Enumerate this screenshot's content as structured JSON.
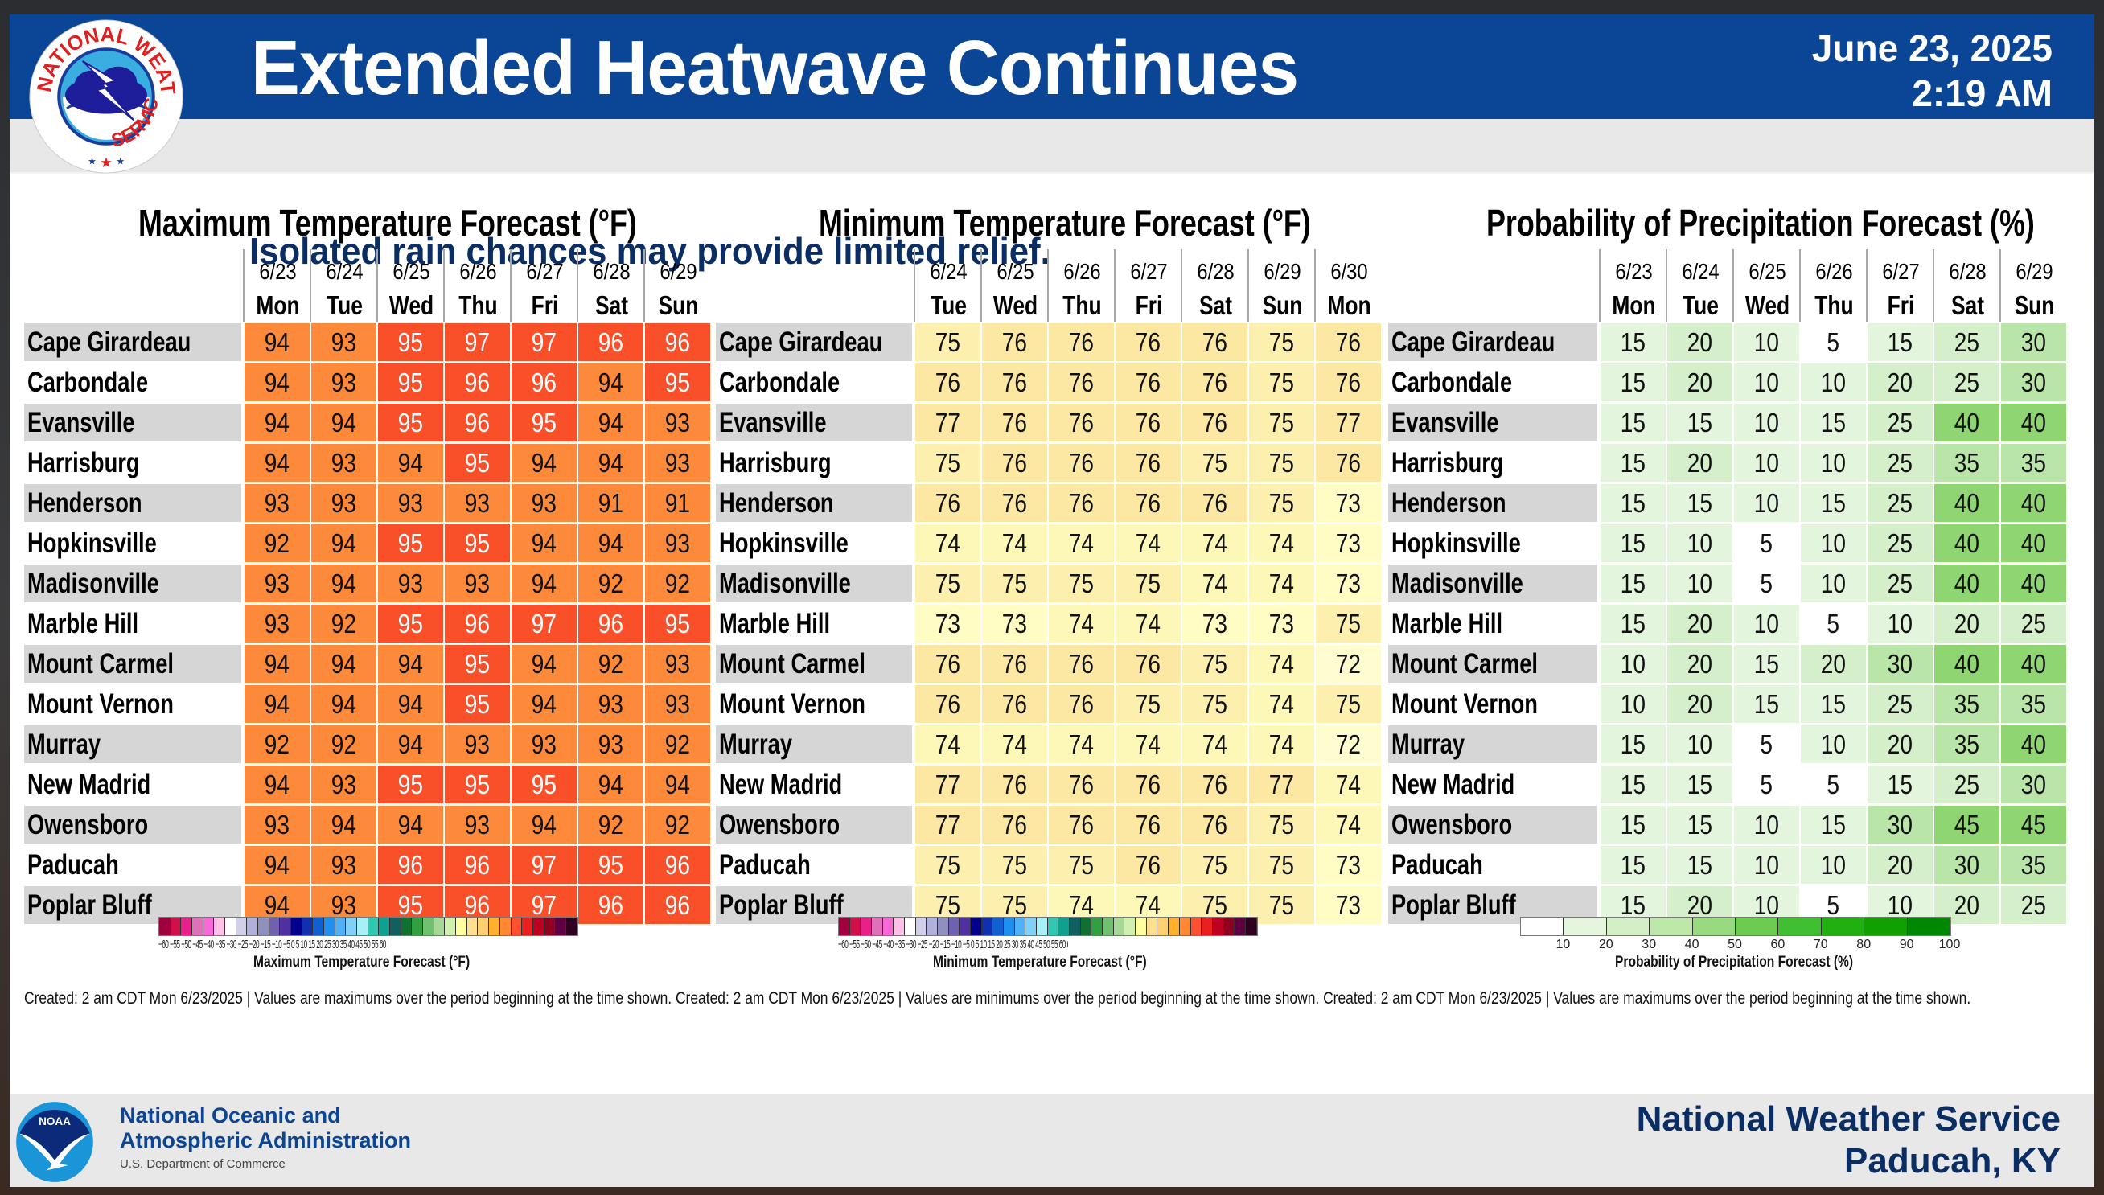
{
  "header": {
    "title": "Extended Heatwave Continues",
    "subtitle": "Isolated rain chances may provide limited relief.",
    "date": "June 23, 2025",
    "time": "2:19 AM",
    "logo_text": "NATIONAL WEATHER SERVICE"
  },
  "colors": {
    "header_blue": "#0b4595",
    "subtitle_navy": "#0a2d63",
    "max_hot": "#f9502a",
    "max_warm": "#fc8a3a",
    "min_76plus": "#fce8a2",
    "min_75": "#fdefae",
    "min_74": "#fef8b8",
    "min_73": "#fffcc4",
    "min_72": "#fffdd0",
    "pop_0_10": "#ffffff",
    "pop_10_20": "#e3f5dc",
    "pop_20_30": "#d4efc9",
    "pop_30_40": "#b9e6a8",
    "pop_40_50": "#8fd672",
    "label_row_shade": "#d6d6d6"
  },
  "cities": [
    "Cape Girardeau",
    "Carbondale",
    "Evansville",
    "Harrisburg",
    "Henderson",
    "Hopkinsville",
    "Madisonville",
    "Marble Hill",
    "Mount Carmel",
    "Mount Vernon",
    "Murray",
    "New Madrid",
    "Owensboro",
    "Paducah",
    "Poplar Bluff"
  ],
  "tables": {
    "max": {
      "title": "Maximum Temperature Forecast (°F)",
      "dates": [
        "6/23",
        "6/24",
        "6/25",
        "6/26",
        "6/27",
        "6/28",
        "6/29"
      ],
      "days": [
        "Mon",
        "Tue",
        "Wed",
        "Thu",
        "Fri",
        "Sat",
        "Sun"
      ],
      "values": [
        [
          94,
          93,
          95,
          97,
          97,
          96,
          96
        ],
        [
          94,
          93,
          95,
          96,
          96,
          94,
          95
        ],
        [
          94,
          94,
          95,
          96,
          95,
          94,
          93
        ],
        [
          94,
          93,
          94,
          95,
          94,
          94,
          93
        ],
        [
          93,
          93,
          93,
          93,
          93,
          91,
          91
        ],
        [
          92,
          94,
          95,
          95,
          94,
          94,
          93
        ],
        [
          93,
          94,
          93,
          93,
          94,
          92,
          92
        ],
        [
          93,
          92,
          95,
          96,
          97,
          96,
          95
        ],
        [
          94,
          94,
          94,
          95,
          94,
          92,
          93
        ],
        [
          94,
          94,
          94,
          95,
          94,
          93,
          93
        ],
        [
          92,
          92,
          94,
          93,
          93,
          93,
          92
        ],
        [
          94,
          93,
          95,
          95,
          95,
          94,
          94
        ],
        [
          93,
          94,
          94,
          93,
          94,
          92,
          92
        ],
        [
          94,
          93,
          96,
          96,
          97,
          95,
          96
        ],
        [
          94,
          93,
          95,
          96,
          97,
          96,
          96
        ]
      ]
    },
    "min": {
      "title": "Minimum Temperature Forecast (°F)",
      "dates": [
        "6/24",
        "6/25",
        "6/26",
        "6/27",
        "6/28",
        "6/29",
        "6/30"
      ],
      "days": [
        "Tue",
        "Wed",
        "Thu",
        "Fri",
        "Sat",
        "Sun",
        "Mon"
      ],
      "values": [
        [
          75,
          76,
          76,
          76,
          76,
          75,
          76
        ],
        [
          76,
          76,
          76,
          76,
          76,
          75,
          76
        ],
        [
          77,
          76,
          76,
          76,
          76,
          75,
          77
        ],
        [
          75,
          76,
          76,
          76,
          75,
          75,
          76
        ],
        [
          76,
          76,
          76,
          76,
          76,
          75,
          73
        ],
        [
          74,
          74,
          74,
          74,
          74,
          74,
          73
        ],
        [
          75,
          75,
          75,
          75,
          74,
          74,
          73
        ],
        [
          73,
          73,
          74,
          74,
          73,
          73,
          75
        ],
        [
          76,
          76,
          76,
          76,
          75,
          74,
          72
        ],
        [
          76,
          76,
          76,
          75,
          75,
          74,
          75
        ],
        [
          74,
          74,
          74,
          74,
          74,
          74,
          72
        ],
        [
          77,
          76,
          76,
          76,
          76,
          77,
          74
        ],
        [
          77,
          76,
          76,
          76,
          76,
          75,
          74
        ],
        [
          75,
          75,
          75,
          76,
          75,
          75,
          73
        ],
        [
          75,
          75,
          74,
          74,
          75,
          75,
          73
        ]
      ]
    },
    "pop": {
      "title": "Probability of Precipitation Forecast (%)",
      "dates": [
        "6/23",
        "6/24",
        "6/25",
        "6/26",
        "6/27",
        "6/28",
        "6/29"
      ],
      "days": [
        "Mon",
        "Tue",
        "Wed",
        "Thu",
        "Fri",
        "Sat",
        "Sun"
      ],
      "values": [
        [
          15,
          20,
          10,
          5,
          15,
          25,
          30
        ],
        [
          15,
          20,
          10,
          10,
          20,
          25,
          30
        ],
        [
          15,
          15,
          10,
          15,
          25,
          40,
          40
        ],
        [
          15,
          20,
          10,
          10,
          25,
          35,
          35
        ],
        [
          15,
          15,
          10,
          15,
          25,
          40,
          40
        ],
        [
          15,
          10,
          5,
          10,
          25,
          40,
          40
        ],
        [
          15,
          10,
          5,
          10,
          25,
          40,
          40
        ],
        [
          15,
          20,
          10,
          5,
          10,
          20,
          25
        ],
        [
          10,
          20,
          15,
          20,
          30,
          40,
          40
        ],
        [
          10,
          20,
          15,
          15,
          25,
          35,
          35
        ],
        [
          15,
          10,
          5,
          10,
          20,
          35,
          40
        ],
        [
          15,
          15,
          5,
          5,
          15,
          25,
          30
        ],
        [
          15,
          15,
          10,
          15,
          30,
          45,
          45
        ],
        [
          15,
          15,
          10,
          10,
          20,
          30,
          35
        ],
        [
          15,
          20,
          10,
          5,
          10,
          20,
          25
        ]
      ]
    }
  },
  "legends": {
    "max": {
      "title": "Maximum Temperature Forecast (°F)",
      "ticks": "−60 −55 −50 −45 −40 −35 −30 −25 −20 −15 −10 −5 0 5 10 15 20 25 30 35 40 45 50 55 60 65 70 75 80 85 90 95 100 105 110 115 120 140"
    },
    "min": {
      "title": "Minimum Temperature Forecast (°F)",
      "ticks": "−60 −55 −50 −45 −40 −35 −30 −25 −20 −15 −10 −5 0 5 10 15 20 25 30 35 40 45 50 55 60 65 70 75 80 85 90 95 100 105 110 115 120 140"
    },
    "temp_colors": [
      "#a00040",
      "#d0104a",
      "#e8208a",
      "#e070b8",
      "#f868d8",
      "#ffc0e8",
      "#ffffff",
      "#d0d0e8",
      "#b0b0d8",
      "#9090c0",
      "#7060b0",
      "#5030a0",
      "#00008c",
      "#1030b0",
      "#1060d0",
      "#2090f0",
      "#50b0f8",
      "#80d0f8",
      "#a8f0f8",
      "#30c8b0",
      "#10a090",
      "#106060",
      "#107030",
      "#30a040",
      "#70c070",
      "#a8d898",
      "#d0f0b0",
      "#ffffa0",
      "#ffe090",
      "#ffd070",
      "#ffb030",
      "#ff8830",
      "#ff5030",
      "#e82020",
      "#c00020",
      "#900020",
      "#600040",
      "#300020"
    ],
    "pop": {
      "title": "Probability of Precipitation Forecast (%)",
      "ticks": [
        "10",
        "20",
        "30",
        "40",
        "50",
        "60",
        "70",
        "80",
        "90",
        "100"
      ],
      "colors": [
        "#ffffff",
        "#e6f6de",
        "#d2efc6",
        "#bde8aa",
        "#98da80",
        "#6ccc50",
        "#40bf30",
        "#20b010",
        "#10a000",
        "#008800"
      ]
    }
  },
  "notes": "Created: 2 am CDT Mon 6/23/2025  |  Values are maximums over the period beginning at the time shown. Created: 2 am CDT Mon 6/23/2025  |  Values are minimums over the period beginning at the time shown. Created: 2 am CDT Mon 6/23/2025  |  Values are maximums over the period beginning at the time shown.",
  "footer": {
    "noaa_line1": "National Oceanic and",
    "noaa_line2": "Atmospheric Administration",
    "noaa_dept": "U.S. Department of Commerce",
    "noaa_logo_text": "NOAA",
    "nws_line1": "National Weather Service",
    "nws_line2": "Paducah, KY"
  }
}
